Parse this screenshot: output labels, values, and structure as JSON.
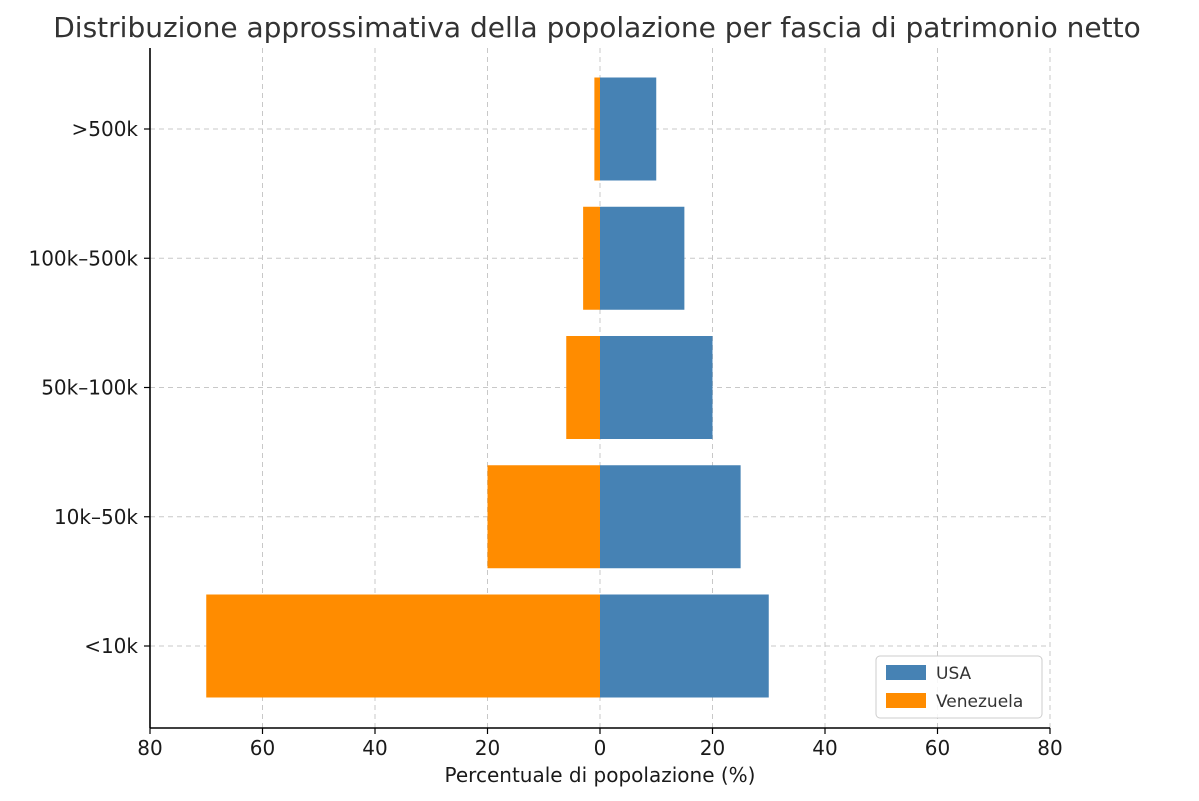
{
  "chart_data": {
    "type": "bar",
    "orientation": "horizontal",
    "title": "Distribuzione approssimativa della popolazione per fascia di patrimonio netto",
    "xlabel": "Percentuale di popolazione (%)",
    "ylabel": "",
    "categories": [
      "<10k",
      "10k–50k",
      "50k–100k",
      "100k–500k",
      ">500k"
    ],
    "series": [
      {
        "name": "USA",
        "values": [
          30,
          25,
          20,
          15,
          10
        ],
        "color": "#4682b4",
        "direction": "right"
      },
      {
        "name": "Venezuela",
        "values": [
          70,
          20,
          6,
          3,
          1
        ],
        "color": "#ff8c00",
        "direction": "left"
      }
    ],
    "xlim": [
      -80,
      80
    ],
    "x_ticks": [
      -80,
      -60,
      -40,
      -20,
      0,
      20,
      40,
      60,
      80
    ],
    "x_tick_labels": [
      "80",
      "60",
      "40",
      "20",
      "0",
      "20",
      "40",
      "60",
      "80"
    ],
    "grid": true,
    "legend_position": "bottom-right"
  }
}
